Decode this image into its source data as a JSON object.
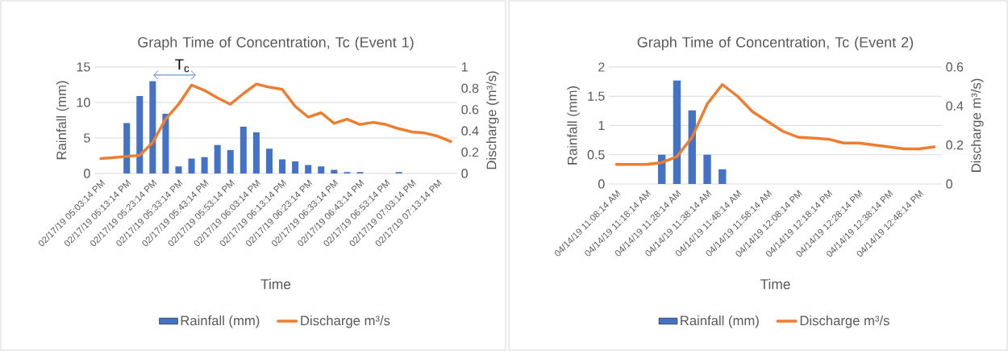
{
  "chart_data": [
    {
      "type": "bar",
      "title": "Graph Time of Concentration, Tc (Event 1)",
      "xlabel": "Time",
      "ylabel": "Rainfall (mm)",
      "y2label": "Discharge (m³/s)",
      "categories": [
        "02/17/19 05:03:14 PM",
        null,
        "02/17/19 05:13:14 PM",
        null,
        "02/17/19 05:23:14 PM",
        null,
        "02/17/19 05:33:14 PM",
        null,
        "02/17/19 05:43:14 PM",
        null,
        "02/17/19 05:53:14 PM",
        null,
        "02/17/19 06:03:14 PM",
        null,
        "02/17/19 06:13:14 PM",
        null,
        "02/17/19 06:23:14 PM",
        null,
        "02/17/19 06:33:14 PM",
        null,
        "02/17/19 06:43:14 PM",
        null,
        "02/17/19 06:53:14 PM",
        null,
        "02/17/19 07:03:14 PM",
        null,
        "02/17/19 07:13:14 PM",
        null
      ],
      "series": [
        {
          "name": "Rainfall (mm)",
          "color": "#4472c4",
          "values": [
            0,
            0,
            7.1,
            10.9,
            13,
            8.4,
            1,
            2.1,
            2.3,
            4,
            3.3,
            6.6,
            5.8,
            3.5,
            2,
            1.7,
            1.2,
            1,
            0.5,
            0.2,
            0.2,
            0,
            0,
            0.2,
            0,
            0,
            0,
            0
          ]
        },
        {
          "name": "Discharge m³/s",
          "type": "line",
          "axis": "y2",
          "color": "#ed7d31",
          "values": [
            0.14,
            0.15,
            0.16,
            0.17,
            0.29,
            0.51,
            0.65,
            0.83,
            0.78,
            0.71,
            0.65,
            0.75,
            0.84,
            0.81,
            0.79,
            0.63,
            0.53,
            0.57,
            0.47,
            0.51,
            0.46,
            0.48,
            0.46,
            0.42,
            0.39,
            0.38,
            0.35,
            0.3
          ]
        }
      ],
      "ylim": [
        0,
        15
      ],
      "yticks": [
        0,
        5,
        10,
        15
      ],
      "y2lim": [
        0,
        1
      ],
      "y2ticks": [
        0,
        0.2,
        0.4,
        0.6,
        0.8,
        1
      ],
      "grid": "y",
      "legend": "bottom",
      "annotations": [
        "T$_{c}$"
      ]
    },
    {
      "type": "bar",
      "title": "Graph Time of Concentration, Tc (Event 2)",
      "xlabel": "Time",
      "ylabel": "Rainfall (mm)",
      "y2label": "Discharge m³/s)",
      "categories": [
        "04/14/19 11:08:14 AM",
        null,
        "04/14/19 11:18:14 AM",
        null,
        "04/14/19 11:28:14 AM",
        null,
        "04/14/19 11:38:14 AM",
        null,
        "04/14/19 11:48:14 AM",
        null,
        "04/14/19 11:58:14 AM",
        null,
        "04/14/19 12:08:14 PM",
        null,
        "04/14/19 12:18:14 PM",
        null,
        "04/14/19 12:28:14 PM",
        null,
        "04/14/19 12:38:14 PM",
        null,
        "04/14/19 12:48:14 PM",
        null
      ],
      "series": [
        {
          "name": "Rainfall (mm)",
          "color": "#4472c4",
          "values": [
            0,
            0,
            0,
            0.5,
            1.77,
            1.26,
            0.5,
            0.25,
            0,
            0,
            0,
            0,
            0,
            0,
            0,
            0,
            0,
            0,
            0,
            0,
            0,
            0
          ]
        },
        {
          "name": "Discharge m³/s",
          "type": "line",
          "axis": "y2",
          "color": "#ed7d31",
          "values": [
            0.1,
            0.1,
            0.1,
            0.11,
            0.14,
            0.24,
            0.41,
            0.51,
            0.45,
            0.37,
            0.32,
            0.27,
            0.24,
            0.235,
            0.23,
            0.21,
            0.21,
            0.2,
            0.19,
            0.18,
            0.18,
            0.19
          ]
        }
      ],
      "ylim": [
        0,
        2
      ],
      "yticks": [
        0,
        0.5,
        1,
        1.5,
        2
      ],
      "y2lim": [
        0,
        0.6
      ],
      "y2ticks": [
        0,
        0.2,
        0.4,
        0.6
      ],
      "grid": "y",
      "legend": "bottom"
    }
  ]
}
